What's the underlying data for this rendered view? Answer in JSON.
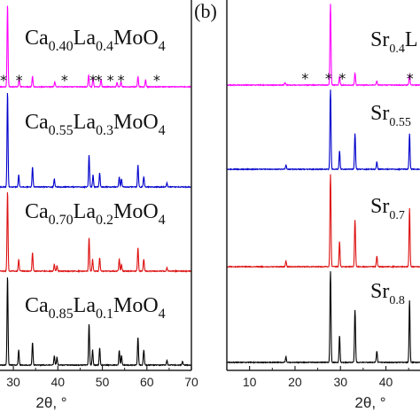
{
  "chart_data": [
    {
      "type": "line",
      "panel_label": "",
      "xlabel": "2θ, °",
      "ylabel": "",
      "xlim": [
        27,
        70
      ],
      "xticks": [
        30,
        40,
        50,
        60,
        70
      ],
      "grid": false,
      "series": [
        {
          "name": "Ca0.40La0.4MoO4",
          "label_parts": [
            [
              "Ca",
              ""
            ],
            [
              "0.40",
              "sub"
            ],
            [
              "La",
              ""
            ],
            [
              "0.4",
              "sub"
            ],
            [
              "MoO",
              ""
            ],
            [
              "4",
              "sub"
            ]
          ],
          "color": "#ff00ff",
          "peaks": [
            [
              28.7,
              95
            ],
            [
              31.3,
              10
            ],
            [
              34.3,
              12
            ],
            [
              39.3,
              6
            ],
            [
              46.9,
              14
            ],
            [
              47.9,
              11
            ],
            [
              49.7,
              9
            ],
            [
              53.3,
              5
            ],
            [
              54.2,
              6
            ],
            [
              58.0,
              12
            ],
            [
              59.7,
              8
            ]
          ],
          "stars": [
            27.8,
            31.3,
            41.5,
            47.9,
            49.2,
            51.8,
            54.2,
            62.2
          ]
        },
        {
          "name": "Ca0.55La0.3MoO4",
          "label_parts": [
            [
              "Ca",
              ""
            ],
            [
              "0.55",
              "sub"
            ],
            [
              "La",
              ""
            ],
            [
              "0.3",
              "sub"
            ],
            [
              "MoO",
              ""
            ],
            [
              "4",
              "sub"
            ]
          ],
          "color": "#0000cc",
          "peaks": [
            [
              28.7,
              95
            ],
            [
              31.2,
              12
            ],
            [
              34.3,
              20
            ],
            [
              39.2,
              8
            ],
            [
              47.0,
              32
            ],
            [
              47.9,
              12
            ],
            [
              49.4,
              14
            ],
            [
              53.8,
              10
            ],
            [
              54.3,
              8
            ],
            [
              58.0,
              22
            ],
            [
              59.3,
              10
            ],
            [
              64.5,
              4
            ]
          ],
          "stars": []
        },
        {
          "name": "Ca0.70La0.2MoO4",
          "label_parts": [
            [
              "Ca",
              ""
            ],
            [
              "0.70",
              "sub"
            ],
            [
              "La",
              ""
            ],
            [
              "0.2",
              "sub"
            ],
            [
              "MoO",
              ""
            ],
            [
              "4",
              "sub"
            ]
          ],
          "color": "#dd1111",
          "peaks": [
            [
              28.7,
              95
            ],
            [
              31.2,
              14
            ],
            [
              34.3,
              22
            ],
            [
              39.2,
              8
            ],
            [
              39.8,
              6
            ],
            [
              47.0,
              40
            ],
            [
              47.8,
              14
            ],
            [
              49.4,
              16
            ],
            [
              53.8,
              14
            ],
            [
              54.3,
              8
            ],
            [
              58.0,
              28
            ],
            [
              59.3,
              14
            ],
            [
              64.5,
              4
            ]
          ],
          "stars": []
        },
        {
          "name": "Ca0.85La0.1MoO4",
          "label_parts": [
            [
              "Ca",
              ""
            ],
            [
              "0.85",
              "sub"
            ],
            [
              "La",
              ""
            ],
            [
              "0.1",
              "sub"
            ],
            [
              "MoO",
              ""
            ],
            [
              "4",
              "sub"
            ]
          ],
          "color": "#000000",
          "peaks": [
            [
              28.7,
              95
            ],
            [
              31.2,
              16
            ],
            [
              34.3,
              24
            ],
            [
              39.2,
              10
            ],
            [
              39.8,
              8
            ],
            [
              47.0,
              44
            ],
            [
              47.8,
              16
            ],
            [
              49.4,
              18
            ],
            [
              53.8,
              16
            ],
            [
              54.3,
              10
            ],
            [
              58.0,
              30
            ],
            [
              59.3,
              16
            ],
            [
              64.5,
              5
            ],
            [
              68.0,
              4
            ]
          ],
          "stars": []
        }
      ]
    },
    {
      "type": "line",
      "panel_label": "(b)",
      "xlabel": "2θ, °",
      "ylabel": "",
      "xlim": [
        5,
        47.5
      ],
      "xticks": [
        10,
        20,
        30,
        40
      ],
      "grid": false,
      "series": [
        {
          "name": "Sr0.4",
          "label_parts": [
            [
              "Sr",
              ""
            ],
            [
              "0.4",
              "sub"
            ],
            [
              "L",
              ""
            ]
          ],
          "color": "#ff00ff",
          "peaks": [
            [
              17.8,
              3
            ],
            [
              27.8,
              95
            ],
            [
              29.8,
              10
            ],
            [
              33.2,
              14
            ],
            [
              38.0,
              5
            ],
            [
              45.2,
              12
            ]
          ],
          "stars": [
            22.2,
            27.4,
            30.4,
            45.3
          ]
        },
        {
          "name": "Sr0.55",
          "label_parts": [
            [
              "Sr",
              ""
            ],
            [
              "0.55",
              "sub"
            ]
          ],
          "color": "#0000cc",
          "peaks": [
            [
              18.0,
              5
            ],
            [
              27.8,
              95
            ],
            [
              29.8,
              22
            ],
            [
              33.2,
              42
            ],
            [
              38.0,
              9
            ],
            [
              45.2,
              42
            ]
          ],
          "stars": []
        },
        {
          "name": "Sr0.7",
          "label_parts": [
            [
              "Sr",
              ""
            ],
            [
              "0.7",
              "sub"
            ]
          ],
          "color": "#dd1111",
          "peaks": [
            [
              18.0,
              6
            ],
            [
              27.8,
              95
            ],
            [
              29.8,
              26
            ],
            [
              33.2,
              48
            ],
            [
              38.0,
              11
            ],
            [
              45.2,
              60
            ]
          ],
          "stars": []
        },
        {
          "name": "Sr0.8",
          "label_parts": [
            [
              "Sr",
              ""
            ],
            [
              "0.8",
              "sub"
            ]
          ],
          "color": "#000000",
          "peaks": [
            [
              18.0,
              6
            ],
            [
              27.8,
              95
            ],
            [
              29.8,
              28
            ],
            [
              33.2,
              55
            ],
            [
              38.0,
              12
            ],
            [
              45.2,
              65
            ]
          ],
          "stars": []
        }
      ]
    }
  ]
}
